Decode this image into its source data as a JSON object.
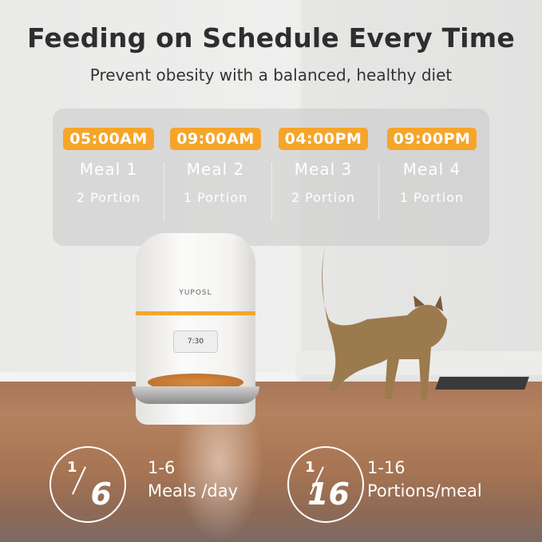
{
  "header": {
    "title": "Feeding on Schedule Every Time",
    "subtitle": "Prevent obesity with a balanced, healthy diet"
  },
  "schedule": [
    {
      "time": "05:00AM",
      "meal": "Meal 1",
      "portion": "2 Portion"
    },
    {
      "time": "09:00AM",
      "meal": "Meal 2",
      "portion": "1 Portion"
    },
    {
      "time": "04:00PM",
      "meal": "Meal 3",
      "portion": "2 Portion"
    },
    {
      "time": "09:00PM",
      "meal": "Meal 4",
      "portion": "1 Portion"
    }
  ],
  "product": {
    "brand": "YUPOSL",
    "display": "7:30"
  },
  "features": [
    {
      "numerator": "1",
      "denominator": "6",
      "line1": "1-6",
      "line2": "Meals /day"
    },
    {
      "numerator": "1",
      "denominator": "16",
      "line1": "1-16",
      "line2": "Portions/meal"
    }
  ],
  "colors": {
    "accent": "#f6a52a",
    "title": "#2e2e2e"
  }
}
